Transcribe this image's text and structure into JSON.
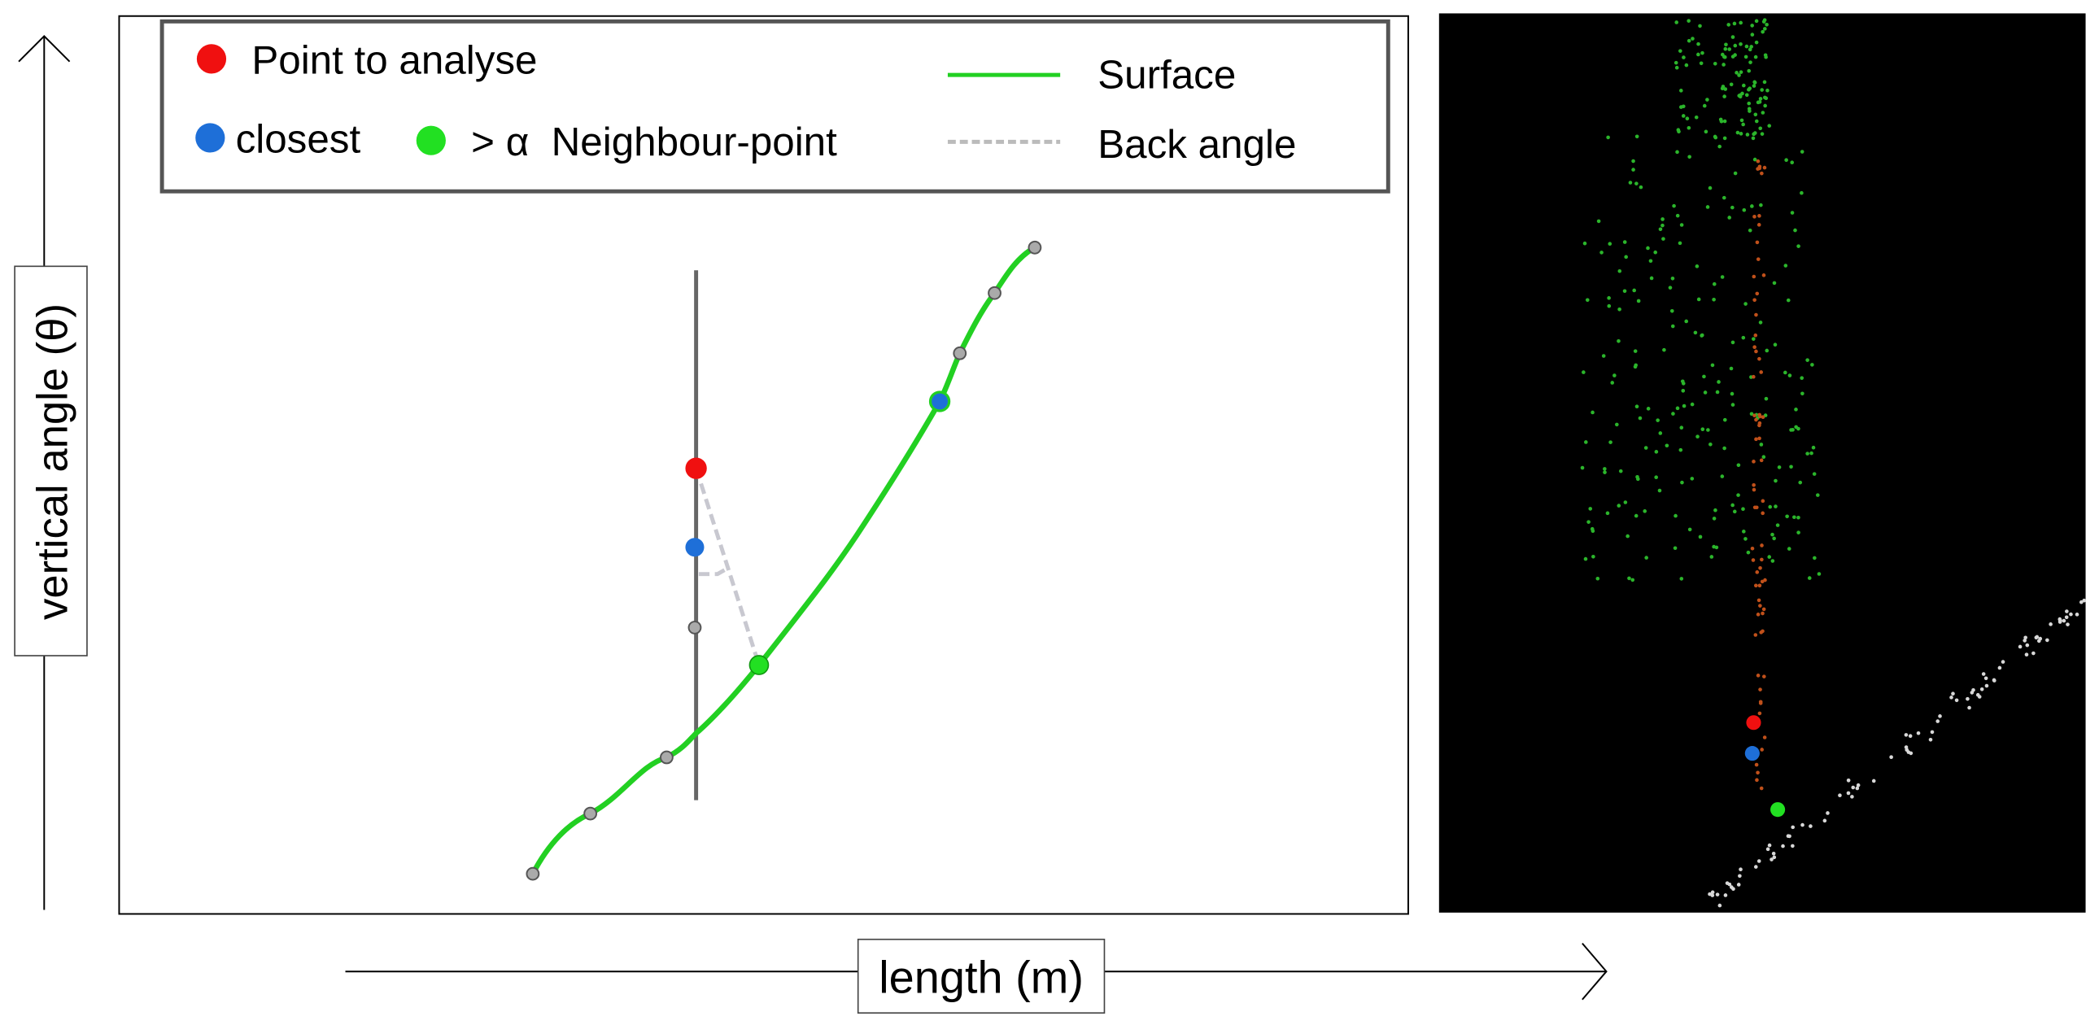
{
  "legend": {
    "point_to_analyse": "Point to analyse",
    "closest": "closest",
    "neighbour": "> α  Neighbour-point",
    "surface": "Surface",
    "back_angle": "Back angle"
  },
  "axes": {
    "y_label": "vertical angle (θ)",
    "x_label": "length (m)"
  }
}
